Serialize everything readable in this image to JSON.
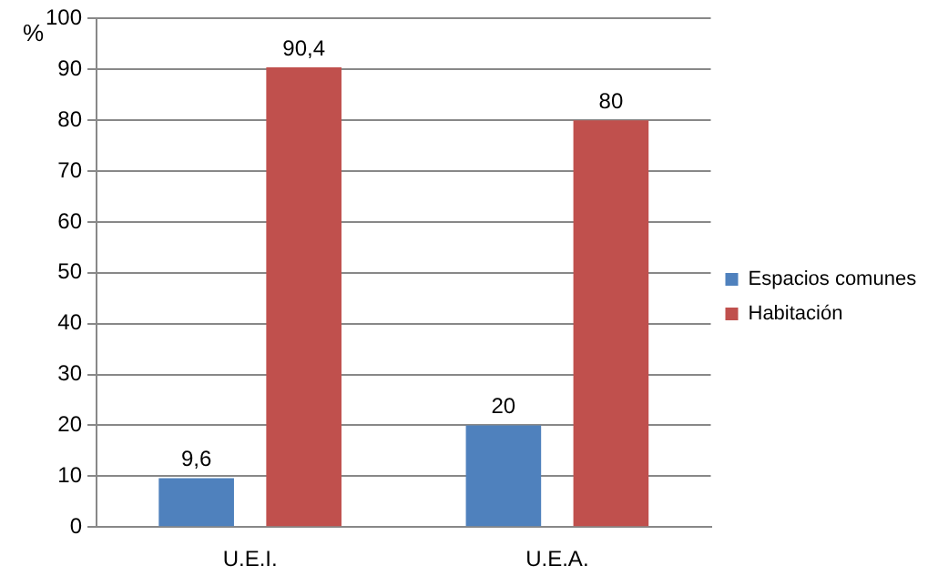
{
  "chart_data": {
    "type": "bar",
    "ylabel": "%",
    "categories": [
      "U.E.I.",
      "U.E.A."
    ],
    "series": [
      {
        "name": "Espacios comunes",
        "color": "#4f81bd",
        "values": [
          9.6,
          20
        ],
        "value_labels": [
          "9,6",
          "20"
        ]
      },
      {
        "name": "Habitación",
        "color": "#c0504d",
        "values": [
          90.4,
          80
        ],
        "value_labels": [
          "90,4",
          "80"
        ]
      }
    ],
    "ylim": [
      0,
      100
    ],
    "yticks": [
      0,
      10,
      20,
      30,
      40,
      50,
      60,
      70,
      80,
      90,
      100
    ],
    "grid": "y",
    "legend": "right"
  }
}
